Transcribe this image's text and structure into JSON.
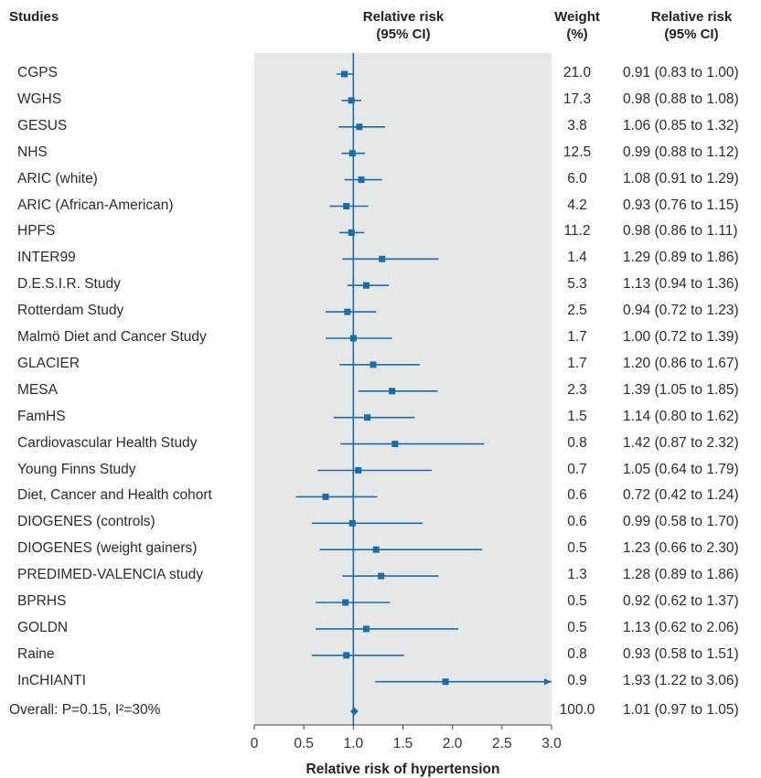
{
  "headers": {
    "studies": "Studies",
    "rr_line1": "Relative risk",
    "rr_line2": "(95% CI)",
    "weight_line1": "Weight",
    "weight_line2": "(%)",
    "rrci_line1": "Relative risk",
    "rrci_line2": "(95% CI)"
  },
  "colors": {
    "marker": "#1a6ca8",
    "panel": "#e6e8e8",
    "reference_line": "#1a6ca8"
  },
  "chart_data": {
    "type": "forest",
    "xlabel": "Relative risk of hypertension",
    "xlim": [
      0,
      3.0
    ],
    "xticks": [
      "0",
      "0.5",
      "1.0",
      "1.5",
      "2.0",
      "2.5",
      "3.0"
    ],
    "reference_value": 1.0,
    "studies": [
      {
        "name": "CGPS",
        "weight": "21.0",
        "rr": 0.91,
        "lower": 0.83,
        "upper": 1.0,
        "ci_text": "0.91 (0.83 to 1.00)"
      },
      {
        "name": "WGHS",
        "weight": "17.3",
        "rr": 0.98,
        "lower": 0.88,
        "upper": 1.08,
        "ci_text": "0.98 (0.88 to 1.08)"
      },
      {
        "name": "GESUS",
        "weight": "3.8",
        "rr": 1.06,
        "lower": 0.85,
        "upper": 1.32,
        "ci_text": "1.06 (0.85 to 1.32)"
      },
      {
        "name": "NHS",
        "weight": "12.5",
        "rr": 0.99,
        "lower": 0.88,
        "upper": 1.12,
        "ci_text": "0.99 (0.88 to 1.12)"
      },
      {
        "name": "ARIC (white)",
        "weight": "6.0",
        "rr": 1.08,
        "lower": 0.91,
        "upper": 1.29,
        "ci_text": "1.08 (0.91 to 1.29)"
      },
      {
        "name": "ARIC (African-American)",
        "weight": "4.2",
        "rr": 0.93,
        "lower": 0.76,
        "upper": 1.15,
        "ci_text": "0.93 (0.76 to 1.15)"
      },
      {
        "name": "HPFS",
        "weight": "11.2",
        "rr": 0.98,
        "lower": 0.86,
        "upper": 1.11,
        "ci_text": "0.98 (0.86 to 1.11)"
      },
      {
        "name": "INTER99",
        "weight": "1.4",
        "rr": 1.29,
        "lower": 0.89,
        "upper": 1.86,
        "ci_text": "1.29 (0.89 to 1.86)"
      },
      {
        "name": "D.E.S.I.R. Study",
        "weight": "5.3",
        "rr": 1.13,
        "lower": 0.94,
        "upper": 1.36,
        "ci_text": "1.13 (0.94 to 1.36)"
      },
      {
        "name": "Rotterdam Study",
        "weight": "2.5",
        "rr": 0.94,
        "lower": 0.72,
        "upper": 1.23,
        "ci_text": "0.94 (0.72 to 1.23)"
      },
      {
        "name": "Malmö Diet and Cancer Study",
        "weight": "1.7",
        "rr": 1.0,
        "lower": 0.72,
        "upper": 1.39,
        "ci_text": "1.00 (0.72 to 1.39)"
      },
      {
        "name": "GLACIER",
        "weight": "1.7",
        "rr": 1.2,
        "lower": 0.86,
        "upper": 1.67,
        "ci_text": "1.20 (0.86 to 1.67)"
      },
      {
        "name": "MESA",
        "weight": "2.3",
        "rr": 1.39,
        "lower": 1.05,
        "upper": 1.85,
        "ci_text": "1.39 (1.05 to 1.85)"
      },
      {
        "name": "FamHS",
        "weight": "1.5",
        "rr": 1.14,
        "lower": 0.8,
        "upper": 1.62,
        "ci_text": "1.14 (0.80 to 1.62)"
      },
      {
        "name": "Cardiovascular Health Study",
        "weight": "0.8",
        "rr": 1.42,
        "lower": 0.87,
        "upper": 2.32,
        "ci_text": "1.42 (0.87 to 2.32)"
      },
      {
        "name": "Young Finns Study",
        "weight": "0.7",
        "rr": 1.05,
        "lower": 0.64,
        "upper": 1.79,
        "ci_text": "1.05 (0.64 to 1.79)"
      },
      {
        "name": "Diet, Cancer and Health cohort",
        "weight": "0.6",
        "rr": 0.72,
        "lower": 0.42,
        "upper": 1.24,
        "ci_text": "0.72 (0.42 to 1.24)"
      },
      {
        "name": "DIOGENES (controls)",
        "weight": "0.6",
        "rr": 0.99,
        "lower": 0.58,
        "upper": 1.7,
        "ci_text": "0.99 (0.58 to 1.70)"
      },
      {
        "name": "DIOGENES (weight gainers)",
        "weight": "0.5",
        "rr": 1.23,
        "lower": 0.66,
        "upper": 2.3,
        "ci_text": "1.23 (0.66 to 2.30)"
      },
      {
        "name": "PREDIMED-VALENCIA study",
        "weight": "1.3",
        "rr": 1.28,
        "lower": 0.89,
        "upper": 1.86,
        "ci_text": "1.28 (0.89 to 1.86)"
      },
      {
        "name": "BPRHS",
        "weight": "0.5",
        "rr": 0.92,
        "lower": 0.62,
        "upper": 1.37,
        "ci_text": "0.92 (0.62 to 1.37)"
      },
      {
        "name": "GOLDN",
        "weight": "0.5",
        "rr": 1.13,
        "lower": 0.62,
        "upper": 2.06,
        "ci_text": "1.13 (0.62 to 2.06)"
      },
      {
        "name": "Raine",
        "weight": "0.8",
        "rr": 0.93,
        "lower": 0.58,
        "upper": 1.51,
        "ci_text": "0.93 (0.58 to 1.51)"
      },
      {
        "name": "InCHIANTI",
        "weight": "0.9",
        "rr": 1.93,
        "lower": 1.22,
        "upper": 3.06,
        "ci_text": "1.93 (1.22 to 3.06)"
      }
    ],
    "overall": {
      "name": "Overall: P=0.15, I²=30%",
      "weight": "100.0",
      "rr": 1.01,
      "lower": 0.97,
      "upper": 1.05,
      "ci_text": "1.01 (0.97 to 1.05)"
    }
  }
}
